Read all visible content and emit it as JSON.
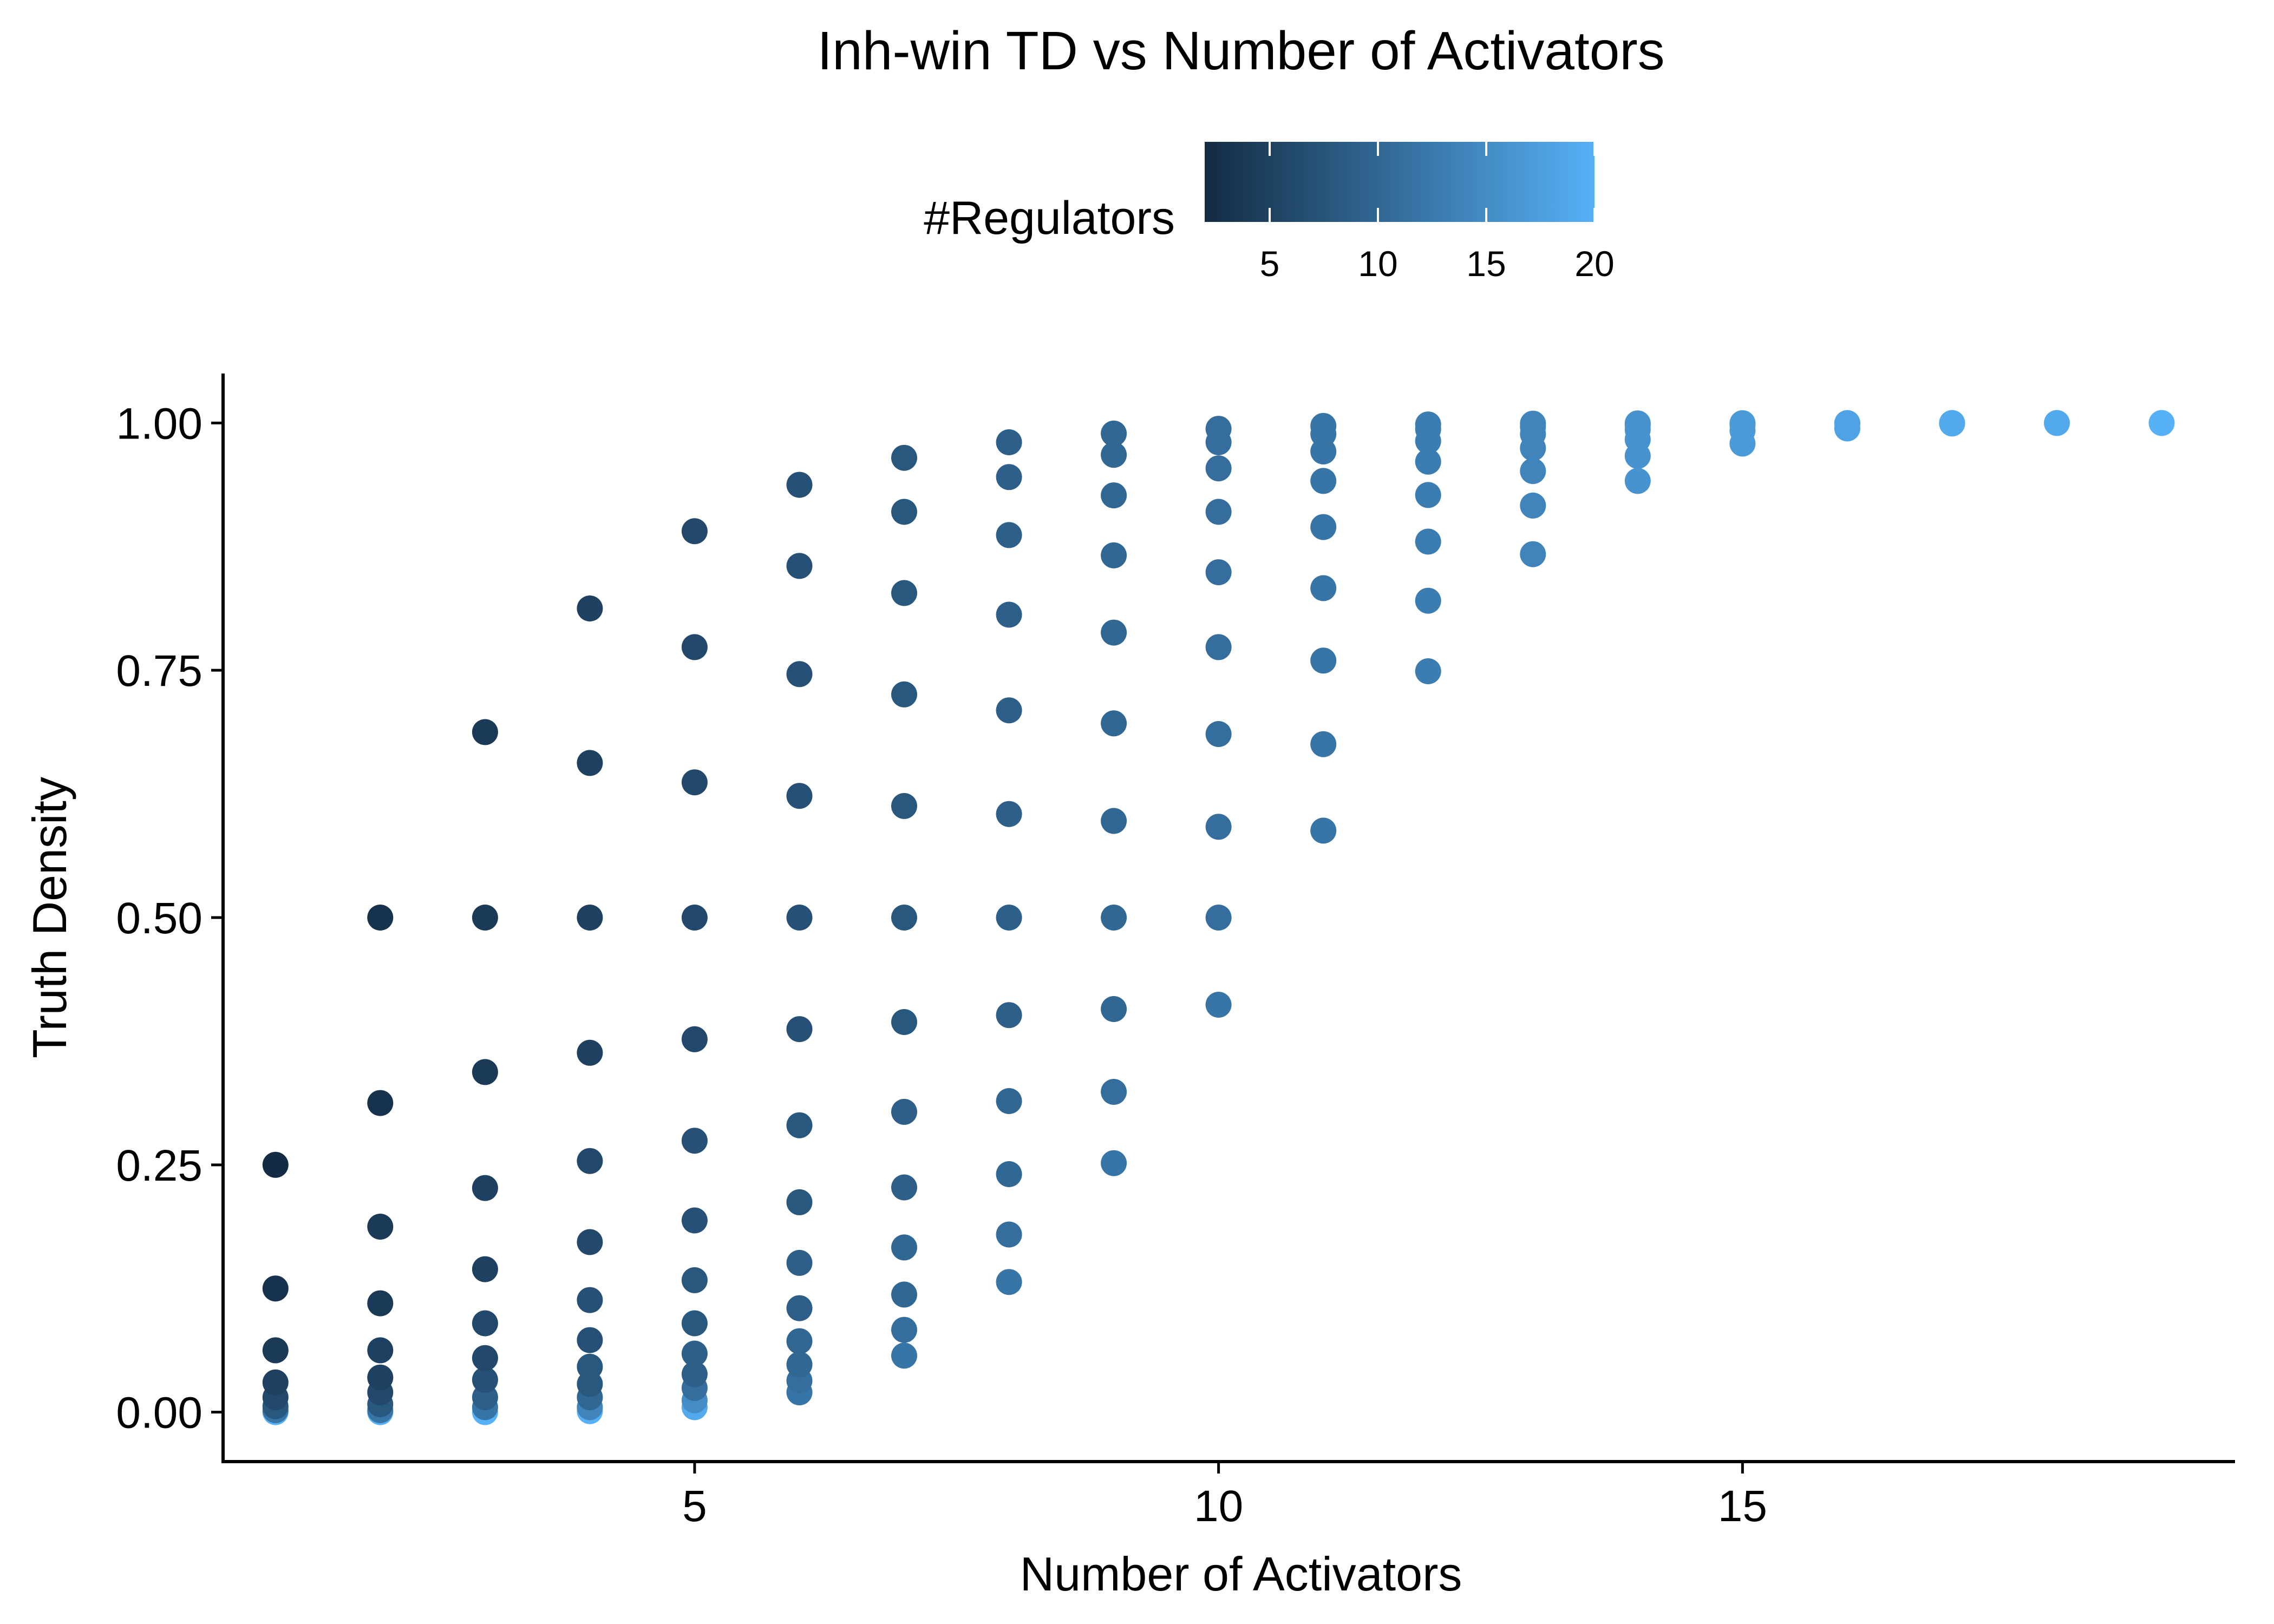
{
  "chart_data": {
    "type": "scatter",
    "title": "Inh-win TD vs Number of Activators",
    "xlabel": "Number of Activators",
    "ylabel": "Truth Density",
    "xlim": [
      0.5,
      19.7
    ],
    "ylim": [
      -0.05,
      1.05
    ],
    "x_ticks": [
      5,
      10,
      15
    ],
    "x_tick_labels": [
      "5",
      "10",
      "15"
    ],
    "y_ticks": [
      0,
      0.25,
      0.5,
      0.75,
      1
    ],
    "y_tick_labels": [
      "0.00",
      "0.25",
      "0.50",
      "0.75",
      "1.00"
    ],
    "grid": false,
    "legend": {
      "title": "#Regulators",
      "type": "colorbar",
      "placement": "top",
      "range": [
        2,
        20
      ],
      "ticks": [
        5,
        10,
        15,
        20
      ],
      "tick_labels": [
        "5",
        "10",
        "15",
        "20"
      ],
      "low_color": "#132b43",
      "high_color": "#56b1f7"
    },
    "note": "Each entry lists the truth-density values for one number of activators (x) and a given number of regulators (color).",
    "groups": [
      {
        "x": 1,
        "regulators": 2,
        "y": [
          0.25
        ]
      },
      {
        "x": 1,
        "regulators": 3,
        "y": [
          0.125
        ]
      },
      {
        "x": 1,
        "regulators": 4,
        "y": [
          0.0625
        ]
      },
      {
        "x": 1,
        "regulators": 5,
        "y": [
          0.03
        ]
      },
      {
        "x": 1,
        "regulators": 6,
        "y": [
          0.015
        ]
      },
      {
        "x": 1,
        "regulators": 8,
        "y": [
          0.006
        ]
      },
      {
        "x": 1,
        "regulators": 12,
        "y": [
          0.002
        ]
      },
      {
        "x": 1,
        "regulators": 20,
        "y": [
          0.0
        ]
      },
      {
        "x": 2,
        "regulators": 3,
        "y": [
          0.5,
          0.3125
        ]
      },
      {
        "x": 2,
        "regulators": 4,
        "y": [
          0.1875,
          0.11
        ]
      },
      {
        "x": 2,
        "regulators": 5,
        "y": [
          0.0625,
          0.035
        ]
      },
      {
        "x": 2,
        "regulators": 6,
        "y": [
          0.02
        ]
      },
      {
        "x": 2,
        "regulators": 8,
        "y": [
          0.008
        ]
      },
      {
        "x": 2,
        "regulators": 12,
        "y": [
          0.002
        ]
      },
      {
        "x": 2,
        "regulators": 20,
        "y": [
          0.0
        ]
      },
      {
        "x": 3,
        "regulators": 4,
        "y": [
          0.6875,
          0.5,
          0.3438
        ]
      },
      {
        "x": 3,
        "regulators": 5,
        "y": [
          0.2266,
          0.1445
        ]
      },
      {
        "x": 3,
        "regulators": 6,
        "y": [
          0.0898,
          0.0547
        ]
      },
      {
        "x": 3,
        "regulators": 7,
        "y": [
          0.0327
        ]
      },
      {
        "x": 3,
        "regulators": 9,
        "y": [
          0.015
        ]
      },
      {
        "x": 3,
        "regulators": 12,
        "y": [
          0.005
        ]
      },
      {
        "x": 3,
        "regulators": 20,
        "y": [
          0.0
        ]
      },
      {
        "x": 4,
        "regulators": 5,
        "y": [
          0.8125,
          0.6563,
          0.5,
          0.3633
        ]
      },
      {
        "x": 4,
        "regulators": 6,
        "y": [
          0.2539,
          0.1719
        ]
      },
      {
        "x": 4,
        "regulators": 7,
        "y": [
          0.1133,
          0.0728
        ]
      },
      {
        "x": 4,
        "regulators": 8,
        "y": [
          0.0459,
          0.0285
        ]
      },
      {
        "x": 4,
        "regulators": 10,
        "y": [
          0.015
        ]
      },
      {
        "x": 4,
        "regulators": 14,
        "y": [
          0.005
        ]
      },
      {
        "x": 4,
        "regulators": 20,
        "y": [
          0.001
        ]
      },
      {
        "x": 5,
        "regulators": 6,
        "y": [
          0.8906,
          0.7734,
          0.6367,
          0.5,
          0.377
        ]
      },
      {
        "x": 5,
        "regulators": 7,
        "y": [
          0.2744,
          0.1938
        ]
      },
      {
        "x": 5,
        "regulators": 8,
        "y": [
          0.1334,
          0.0898
        ]
      },
      {
        "x": 5,
        "regulators": 9,
        "y": [
          0.0592,
          0.0384
        ]
      },
      {
        "x": 5,
        "regulators": 11,
        "y": [
          0.0245
        ]
      },
      {
        "x": 5,
        "regulators": 15,
        "y": [
          0.012
        ]
      },
      {
        "x": 5,
        "regulators": 19,
        "y": [
          0.005
        ]
      },
      {
        "x": 6,
        "regulators": 7,
        "y": [
          0.9375,
          0.8555,
          0.7461,
          0.623,
          0.5,
          0.3872
        ]
      },
      {
        "x": 6,
        "regulators": 8,
        "y": [
          0.29,
          0.2122
        ]
      },
      {
        "x": 6,
        "regulators": 9,
        "y": [
          0.1509,
          0.1051
        ]
      },
      {
        "x": 6,
        "regulators": 10,
        "y": [
          0.0717,
          0.0481
        ]
      },
      {
        "x": 6,
        "regulators": 11,
        "y": [
          0.0318
        ]
      },
      {
        "x": 6,
        "regulators": 12,
        "y": [
          0.02
        ]
      },
      {
        "x": 7,
        "regulators": 8,
        "y": [
          0.9648,
          0.9102,
          0.8281,
          0.7256,
          0.6128,
          0.5,
          0.3944
        ]
      },
      {
        "x": 7,
        "regulators": 9,
        "y": [
          0.3036,
          0.2272
        ]
      },
      {
        "x": 7,
        "regulators": 10,
        "y": [
          0.1665,
          0.1189
        ]
      },
      {
        "x": 7,
        "regulators": 11,
        "y": [
          0.0832
        ]
      },
      {
        "x": 7,
        "regulators": 12,
        "y": [
          0.0571
        ]
      },
      {
        "x": 8,
        "regulators": 9,
        "y": [
          0.9805,
          0.9453,
          0.8867,
          0.8062,
          0.7095,
          0.6047,
          0.5,
          0.4014
        ]
      },
      {
        "x": 8,
        "regulators": 10,
        "y": [
          0.3145,
          0.2406
        ]
      },
      {
        "x": 8,
        "regulators": 11,
        "y": [
          0.1796
        ]
      },
      {
        "x": 8,
        "regulators": 12,
        "y": [
          0.1316
        ]
      },
      {
        "x": 9,
        "regulators": 10,
        "y": [
          0.9893,
          0.9678,
          0.9268,
          0.8662,
          0.7881,
          0.6963,
          0.5977,
          0.5,
          0.4075
        ]
      },
      {
        "x": 9,
        "regulators": 11,
        "y": [
          0.3238
        ]
      },
      {
        "x": 9,
        "regulators": 12,
        "y": [
          0.2517
        ]
      },
      {
        "x": 10,
        "regulators": 11,
        "y": [
          0.9941,
          0.9805,
          0.9541,
          0.9102,
          0.8491,
          0.7734,
          0.6855,
          0.5918,
          0.5
        ]
      },
      {
        "x": 10,
        "regulators": 12,
        "y": [
          0.4119
        ]
      },
      {
        "x": 11,
        "regulators": 12,
        "y": [
          0.9971,
          0.9888,
          0.9712,
          0.9414,
          0.8948,
          0.833,
          0.7598,
          0.6753,
          0.5879
        ]
      },
      {
        "x": 12,
        "regulators": 13,
        "y": [
          0.9985,
          0.9937,
          0.9817,
          0.9609,
          0.9272,
          0.8801,
          0.8203,
          0.749
        ]
      },
      {
        "x": 13,
        "regulators": 14,
        "y": [
          0.9993,
          0.9963,
          0.9888,
          0.9746,
          0.9514,
          0.9165,
          0.8674
        ]
      },
      {
        "x": 14,
        "regulators": 16,
        "y": [
          0.9996,
          0.9979,
          0.9934,
          0.9834,
          0.9667,
          0.9414
        ]
      },
      {
        "x": 15,
        "regulators": 17,
        "y": [
          0.9998,
          0.9983,
          0.9923,
          0.9792
        ]
      },
      {
        "x": 16,
        "regulators": 18,
        "y": [
          0.9999,
          0.9995,
          0.9945
        ]
      },
      {
        "x": 17,
        "regulators": 19,
        "y": [
          1.0,
          0.9995
        ]
      },
      {
        "x": 18,
        "regulators": 19,
        "y": [
          1.0
        ]
      },
      {
        "x": 19,
        "regulators": 20,
        "y": [
          1.0
        ]
      }
    ]
  }
}
